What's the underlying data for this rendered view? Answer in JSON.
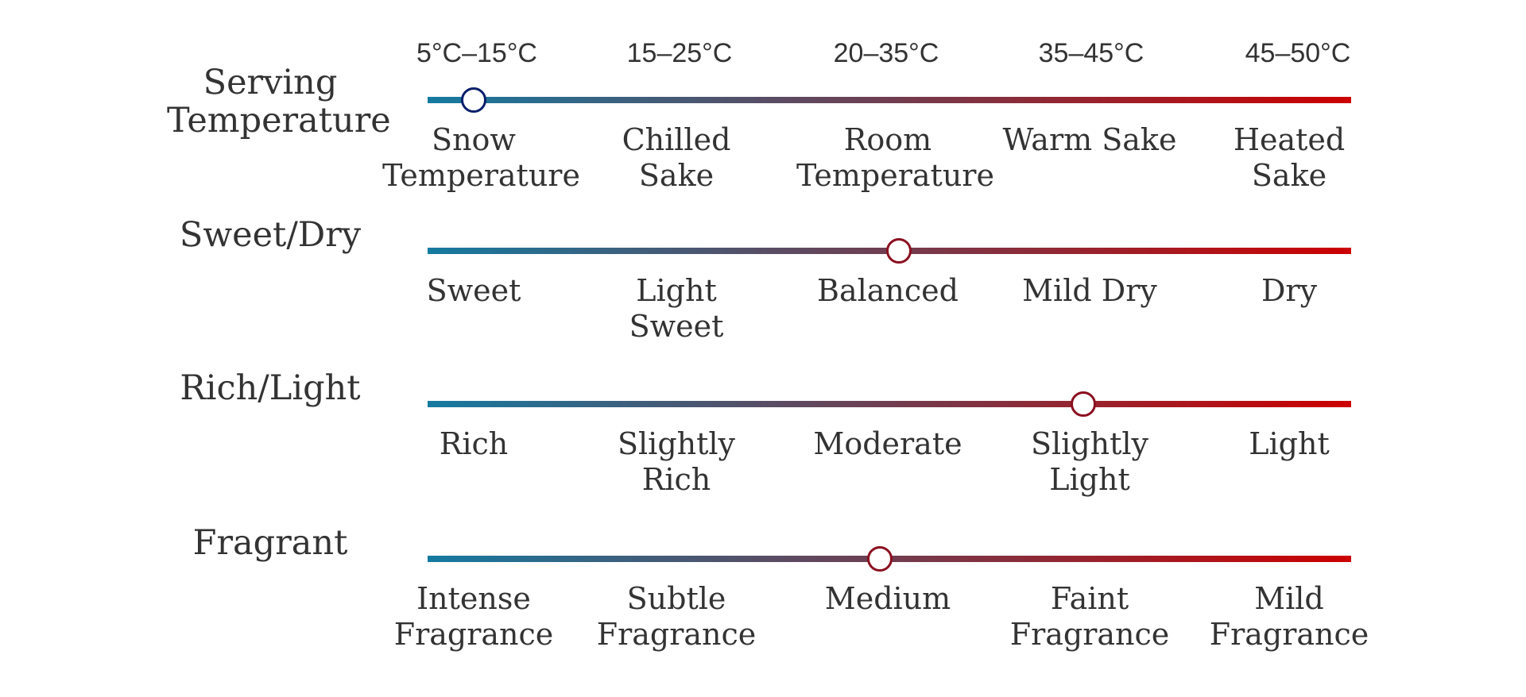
{
  "colors": {
    "track_start": "#157aa0",
    "track_end": "#cc0000",
    "knob_cool": "#0a1f6b",
    "knob_warm": "#8b1020"
  },
  "temperatures": [
    "5°C–15°C",
    "15–25°C",
    "20–35°C",
    "35–45°C",
    "45–50°C"
  ],
  "scales": [
    {
      "title": "Serving Temperature",
      "value": 0.05,
      "labels": [
        "Snow Temperature",
        "Chilled Sake",
        "Room Temperature",
        "Warm Sake",
        "Heated Sake"
      ]
    },
    {
      "title": "Sweet/Dry",
      "value": 0.51,
      "labels": [
        "Sweet",
        "Light Sweet",
        "Balanced",
        "Mild Dry",
        "Dry"
      ]
    },
    {
      "title": "Rich/Light",
      "value": 0.71,
      "labels": [
        "Rich",
        "Slightly Rich",
        "Moderate",
        "Slightly Light",
        "Light"
      ]
    },
    {
      "title": "Fragrant",
      "value": 0.49,
      "labels": [
        "Intense Fragrance",
        "Subtle Fragrance",
        "Medium",
        "Faint Fragrance",
        "Mild Fragrance"
      ]
    }
  ]
}
